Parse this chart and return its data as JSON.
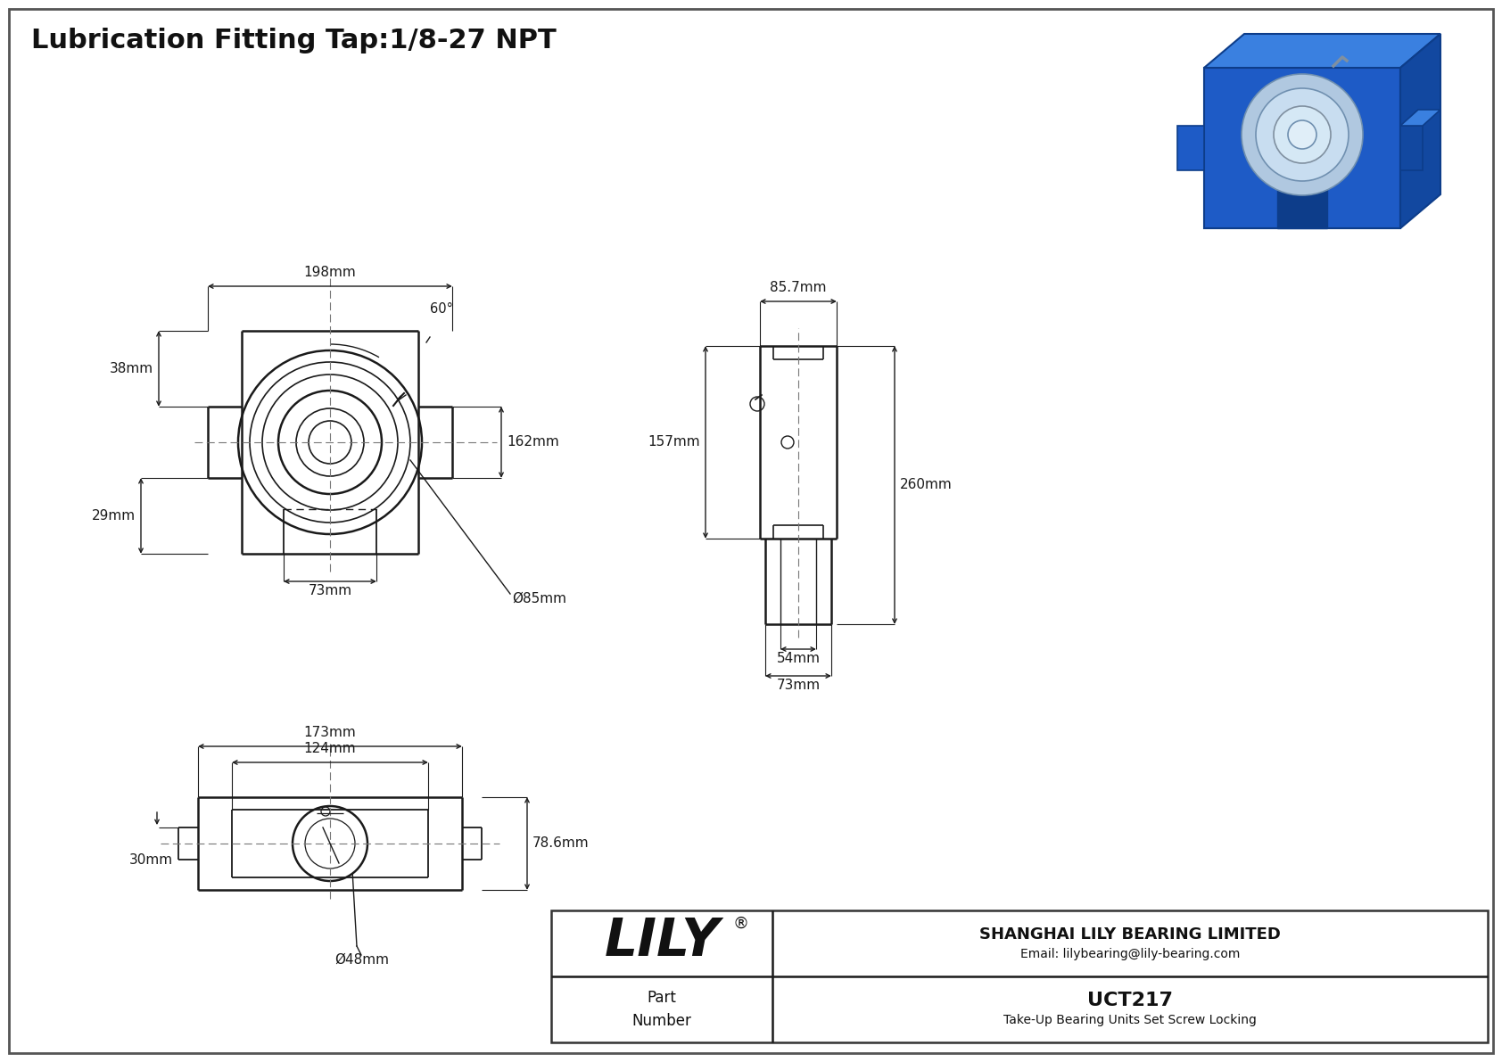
{
  "title": "Lubrication Fitting Tap:1/8-27 NPT",
  "bg_color": "#ffffff",
  "line_color": "#1a1a1a",
  "dim_color": "#1a1a1a",
  "border_color": "#555555",
  "dims_front": {
    "width": "198mm",
    "height_right": "162mm",
    "height_left": "38mm",
    "slot_width": "73mm",
    "bore": "Ø85mm",
    "angle": "60°"
  },
  "dims_side": {
    "top_width": "85.7mm",
    "body_height": "157mm",
    "total_height": "260mm",
    "base_width": "54mm",
    "slot_width": "73mm"
  },
  "dims_bottom": {
    "outer_width": "173mm",
    "inner_width": "124mm",
    "height": "78.6mm",
    "bore": "Ø48mm",
    "slot_depth": "30mm"
  },
  "company": "SHANGHAI LILY BEARING LIMITED",
  "email": "Email: lilybearing@lily-bearing.com",
  "part_label": "Part\nNumber",
  "part_number": "UCT217",
  "part_desc": "Take-Up Bearing Units Set Screw Locking",
  "dim29": "29mm"
}
